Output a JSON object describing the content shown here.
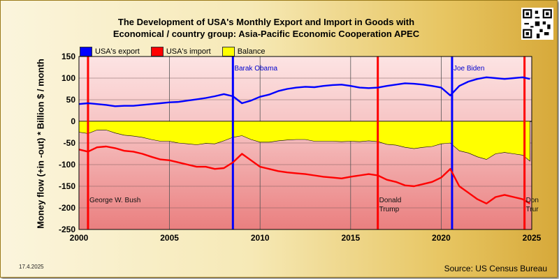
{
  "title_line1": "The Development of USA's Monthly Export and Import in Goods with",
  "title_line2": "Economical / country group: Asia-Pacific Economic Cooperation APEC",
  "legend": [
    {
      "label": "USA's export",
      "color": "#0000ff"
    },
    {
      "label": "USA's import",
      "color": "#ff0000"
    },
    {
      "label": "Balance",
      "color": "#ffff00"
    }
  ],
  "ylabel": "Money flow (+in -out) * Billion $ / month",
  "date_stamp": "17.4.2025",
  "source": "Source: US Census Bureau",
  "chart_data": {
    "type": "line",
    "xlim": [
      2000,
      2025
    ],
    "ylim": [
      -250,
      150
    ],
    "x_ticks": [
      2000,
      2005,
      2010,
      2015,
      2020,
      2025
    ],
    "y_ticks": [
      150,
      100,
      50,
      0,
      -50,
      -100,
      -150,
      -200,
      -250
    ],
    "grid": true,
    "x": [
      2000.0,
      2000.5,
      2001.0,
      2001.5,
      2002.0,
      2002.5,
      2003.0,
      2003.5,
      2004.0,
      2004.5,
      2005.0,
      2005.5,
      2006.0,
      2006.5,
      2007.0,
      2007.5,
      2008.0,
      2008.5,
      2009.0,
      2009.5,
      2010.0,
      2010.5,
      2011.0,
      2011.5,
      2012.0,
      2012.5,
      2013.0,
      2013.5,
      2014.0,
      2014.5,
      2015.0,
      2015.5,
      2016.0,
      2016.5,
      2017.0,
      2017.5,
      2018.0,
      2018.5,
      2019.0,
      2019.5,
      2020.0,
      2020.5,
      2021.0,
      2021.5,
      2022.0,
      2022.5,
      2023.0,
      2023.5,
      2024.0,
      2024.5,
      2024.9
    ],
    "series": [
      {
        "name": "USA's export",
        "color": "#0000ff",
        "values": [
          40,
          42,
          40,
          38,
          35,
          36,
          36,
          38,
          40,
          42,
          44,
          45,
          48,
          51,
          54,
          58,
          63,
          58,
          42,
          48,
          57,
          62,
          70,
          75,
          78,
          80,
          79,
          82,
          84,
          85,
          82,
          78,
          77,
          78,
          82,
          85,
          88,
          87,
          85,
          82,
          78,
          60,
          82,
          92,
          98,
          102,
          100,
          98,
          100,
          102,
          98
        ]
      },
      {
        "name": "USA's import",
        "color": "#ff0000",
        "values": [
          -65,
          -70,
          -60,
          -58,
          -62,
          -68,
          -70,
          -75,
          -82,
          -88,
          -90,
          -95,
          -100,
          -105,
          -105,
          -110,
          -108,
          -95,
          -75,
          -90,
          -105,
          -110,
          -115,
          -118,
          -120,
          -122,
          -125,
          -128,
          -130,
          -132,
          -128,
          -125,
          -122,
          -125,
          -135,
          -140,
          -148,
          -150,
          -145,
          -140,
          -130,
          -110,
          -150,
          -165,
          -180,
          -190,
          -175,
          -170,
          -175,
          -180,
          -190
        ]
      },
      {
        "name": "Balance",
        "color": "#ffff00",
        "values": [
          -25,
          -28,
          -20,
          -20,
          -27,
          -32,
          -34,
          -37,
          -42,
          -46,
          -46,
          -50,
          -52,
          -54,
          -51,
          -52,
          -45,
          -37,
          -33,
          -42,
          -48,
          -48,
          -45,
          -43,
          -42,
          -42,
          -46,
          -46,
          -46,
          -47,
          -46,
          -47,
          -45,
          -47,
          -53,
          -55,
          -60,
          -63,
          -60,
          -58,
          -52,
          -50,
          -68,
          -73,
          -82,
          -88,
          -75,
          -72,
          -75,
          -78,
          -92
        ]
      }
    ],
    "events": [
      {
        "x": 2000.5,
        "color": "#ff0000",
        "label": "George W. Bush",
        "label_y": -187
      },
      {
        "x": 2008.5,
        "color": "#0000ff",
        "label": "Barak Obama",
        "label_y": 118
      },
      {
        "x": 2016.5,
        "color": "#ff0000",
        "label": "Donald\nTrump",
        "label_y": -187
      },
      {
        "x": 2020.6,
        "color": "#0000ff",
        "label": "Joe Biden",
        "label_y": 118
      },
      {
        "x": 2024.6,
        "color": "#ff0000",
        "label": "Don\nTrur",
        "label_y": -187
      }
    ]
  }
}
